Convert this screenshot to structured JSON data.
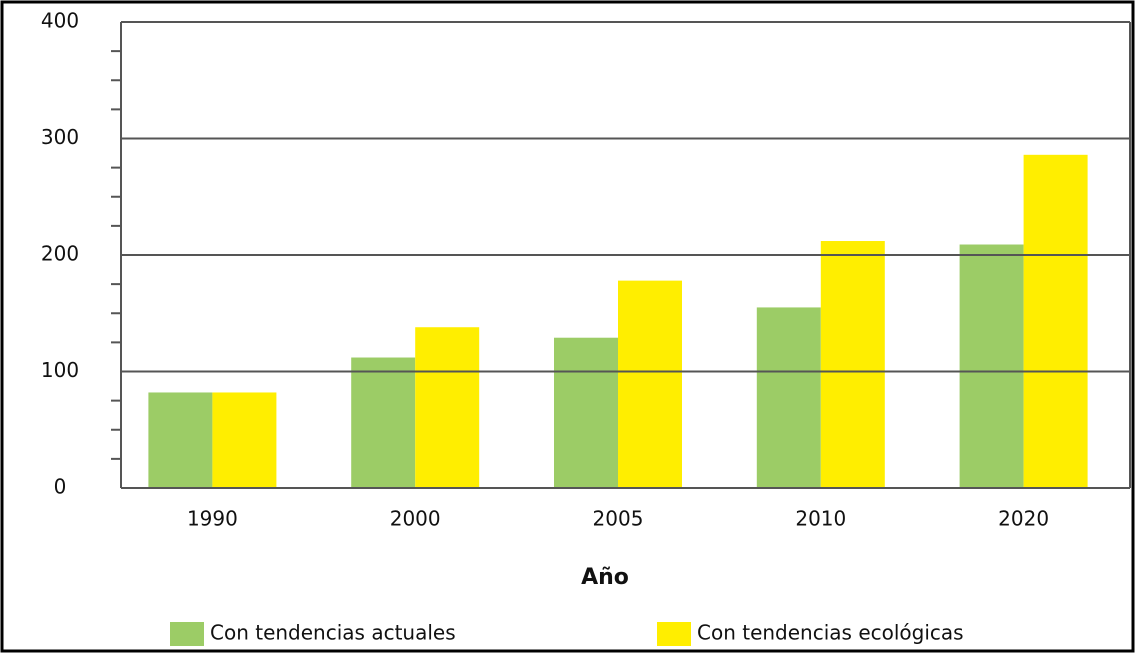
{
  "chart_data": {
    "type": "bar",
    "xlabel": "Año",
    "categories": [
      "1990",
      "2000",
      "2005",
      "2010",
      "2020"
    ],
    "series": [
      {
        "name": "Con tendencias actuales",
        "color": "#9ccc66",
        "values": [
          82,
          112,
          129,
          155,
          209
        ]
      },
      {
        "name": "Con tendencias ecológicas",
        "color": "#ffee00",
        "values": [
          82,
          138,
          178,
          212,
          286
        ]
      }
    ],
    "ylim": [
      0,
      400
    ],
    "yticks": [
      0,
      100,
      200,
      300,
      400
    ],
    "yminor_ticks": [
      25,
      50,
      75,
      125,
      150,
      175,
      225,
      250,
      275,
      325,
      350,
      375
    ],
    "grid": true,
    "legend": "bottom"
  }
}
